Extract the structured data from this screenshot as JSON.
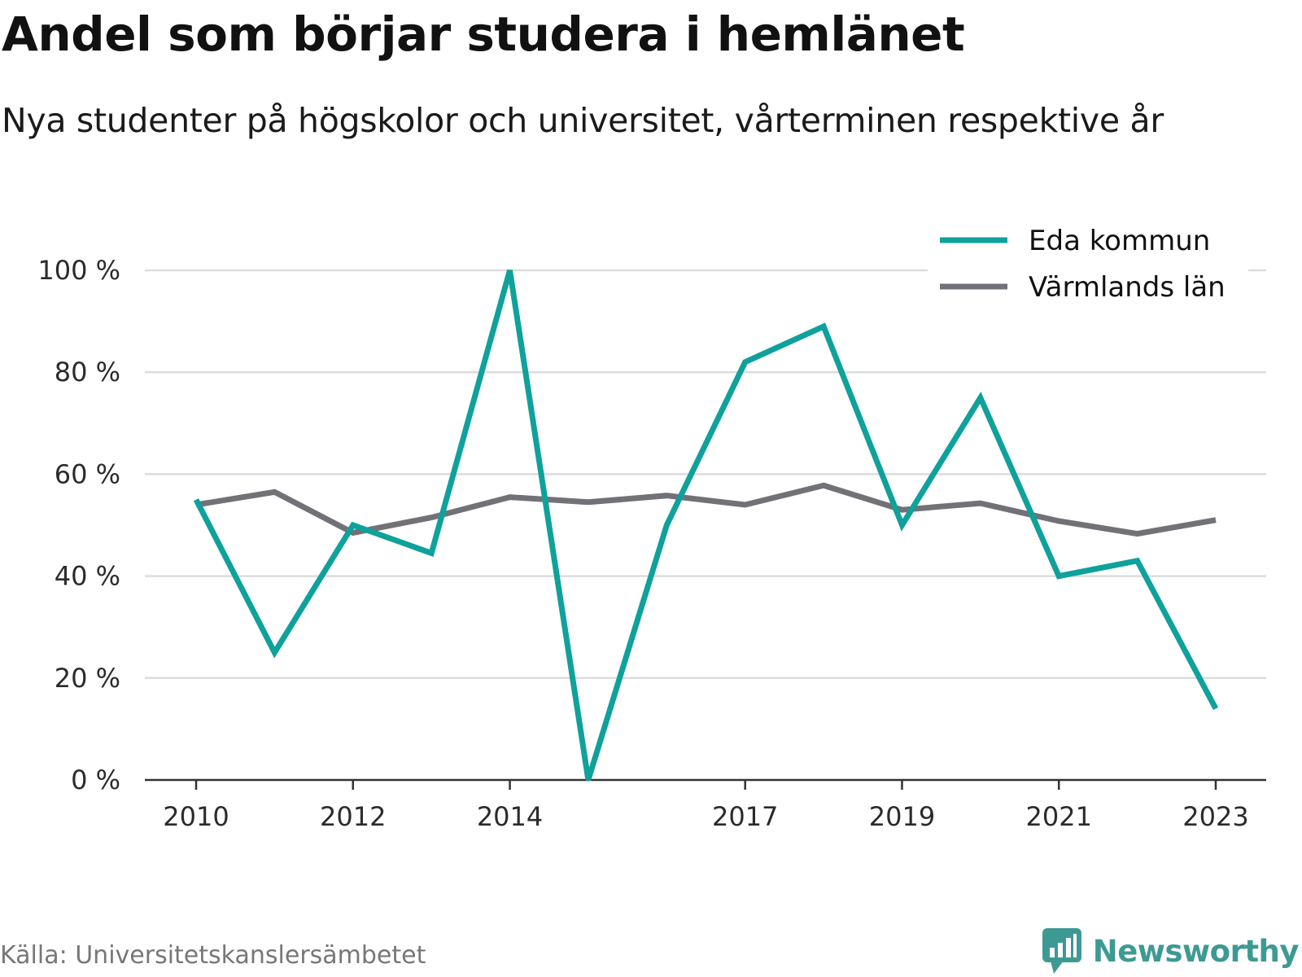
{
  "title": "Andel som börjar studera i hemlänet",
  "subtitle": "Nya studenter på högskolor och universitet, vårterminen respektive år",
  "source": "Källa: Universitetskanslersämbetet",
  "brand": {
    "name": "Newsworthy",
    "icon": "bar-chart-speech-bubble-icon",
    "color": "#3d9a93"
  },
  "chart_data": {
    "type": "line",
    "x": [
      2010,
      2011,
      2012,
      2013,
      2014,
      2015,
      2016,
      2017,
      2018,
      2019,
      2020,
      2021,
      2022,
      2023
    ],
    "x_tick_labels": [
      "2010",
      "2012",
      "2014",
      "2017",
      "2019",
      "2021",
      "2023"
    ],
    "y_tick_labels": [
      "0 %",
      "20 %",
      "40 %",
      "60 %",
      "80 %",
      "100 %"
    ],
    "ylim": [
      0,
      100
    ],
    "y_ticks": [
      0,
      20,
      40,
      60,
      80,
      100
    ],
    "grid": true,
    "legend_position": "top-right",
    "series": [
      {
        "name": "Eda kommun",
        "color": "#0fa19b",
        "values": [
          55,
          25,
          50,
          44.5,
          100,
          0,
          50,
          82,
          89,
          50,
          75,
          40,
          43,
          14
        ]
      },
      {
        "name": "Värmlands län",
        "color": "#737178",
        "values": [
          54,
          56.5,
          48.5,
          51.5,
          55.5,
          54.5,
          55.8,
          54,
          57.8,
          53,
          54.3,
          50.8,
          48.3,
          51
        ]
      }
    ]
  }
}
